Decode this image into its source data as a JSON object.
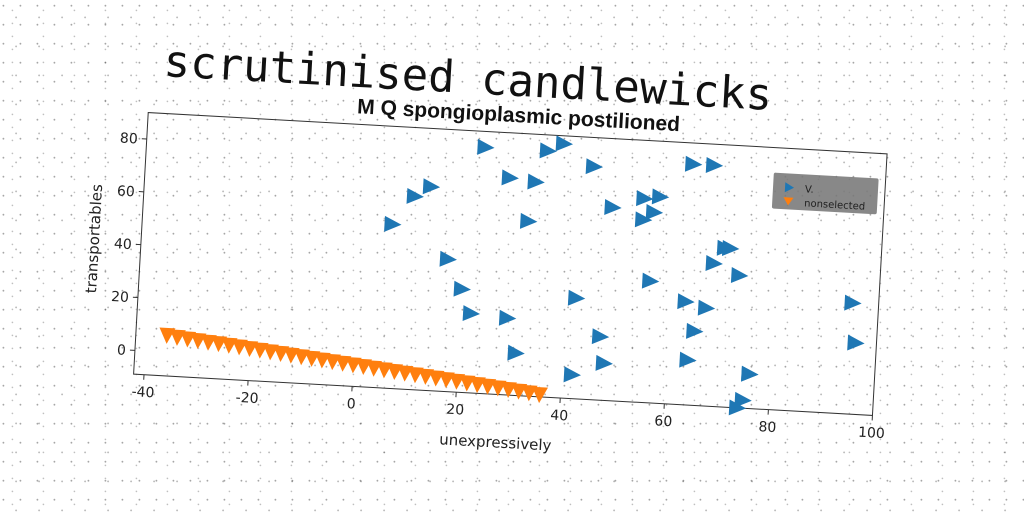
{
  "page_title": "scrutinised candlewicks",
  "chart_data": {
    "type": "scatter",
    "title": "M Q spongioplasmic postilioned",
    "xlabel": "unexpressively",
    "ylabel": "transportables",
    "xlim": [
      -42,
      100
    ],
    "ylim": [
      -9,
      90
    ],
    "xticks": [
      -40,
      -20,
      0,
      20,
      40,
      60,
      80,
      100
    ],
    "yticks": [
      0,
      20,
      40,
      60,
      80
    ],
    "grid": false,
    "legend_position": "top-right",
    "series": [
      {
        "name": "V.",
        "marker": "triangle-right",
        "color": "#1f77b4",
        "x": [
          6,
          10,
          13,
          17,
          20,
          22,
          23,
          28,
          29,
          31,
          32,
          33,
          35,
          38,
          42,
          42,
          44,
          47,
          48,
          48,
          54,
          54,
          56,
          56,
          57,
          63,
          63,
          64,
          65,
          67,
          67,
          68,
          70,
          71,
          73,
          74,
          75,
          76,
          76,
          95,
          96
        ],
        "y": [
          53,
          64,
          68,
          41,
          30,
          21,
          84,
          73,
          20,
          7,
          57,
          72,
          84,
          87,
          29,
          0,
          79,
          15,
          64,
          5,
          68,
          60,
          63,
          37,
          69,
          82,
          30,
          8,
          19,
          28,
          82,
          45,
          51,
          51,
          41,
          -9,
          -6,
          4,
          4,
          33,
          18
        ]
      },
      {
        "name": "nonselected",
        "marker": "triangle-down",
        "color": "#ff7f0e",
        "x": [
          -36,
          -34,
          -32,
          -30,
          -28,
          -26,
          -24,
          -22,
          -20,
          -18,
          -16,
          -14,
          -12,
          -10,
          -8,
          -6,
          -4,
          -2,
          0,
          2,
          4,
          6,
          8,
          10,
          12,
          14,
          16,
          18,
          20,
          22,
          24,
          26,
          28,
          30,
          32,
          34,
          36
        ],
        "y": [
          6.5,
          6.0,
          5.6,
          5.2,
          4.8,
          4.5,
          4.1,
          3.7,
          3.3,
          2.9,
          2.5,
          2.1,
          1.7,
          1.3,
          0.9,
          0.5,
          0.1,
          -0.3,
          -0.7,
          -1.1,
          -1.5,
          -1.9,
          -2.3,
          -2.7,
          -3.1,
          -3.5,
          -3.9,
          -4.3,
          -4.7,
          -5.1,
          -5.5,
          -5.9,
          -6.3,
          -6.7,
          -7.1,
          -7.5,
          -8.0
        ]
      }
    ]
  }
}
